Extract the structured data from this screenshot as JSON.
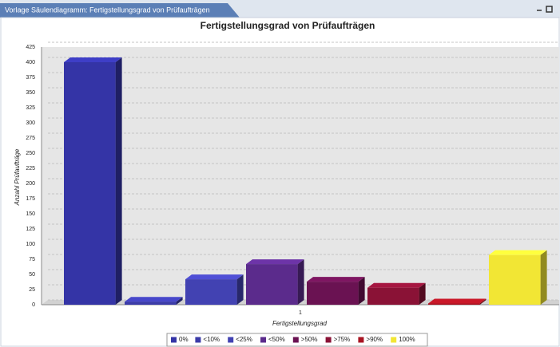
{
  "window": {
    "tab_title": "Vorlage Säulendiagramm: Fertigstellungsgrad von Prüfaufträgen"
  },
  "chart_data": {
    "type": "bar",
    "title": "Fertigstellungsgrad von Prüfaufträgen",
    "x_label": "Fertigstellungsgrad",
    "y_label": "Anzahl Prüfaufträge",
    "categories": [
      "1"
    ],
    "series": [
      {
        "name": "0%",
        "color": "#3434a6",
        "values": [
          400
        ]
      },
      {
        "name": "<10%",
        "color": "#3b3ba8",
        "values": [
          5
        ]
      },
      {
        "name": "<25%",
        "color": "#4242b2",
        "values": [
          42
        ]
      },
      {
        "name": "<50%",
        "color": "#5b2b8c",
        "values": [
          67
        ]
      },
      {
        "name": ">50%",
        "color": "#6a1252",
        "values": [
          38
        ]
      },
      {
        "name": ">75%",
        "color": "#8a1236",
        "values": [
          28
        ]
      },
      {
        "name": ">90%",
        "color": "#a81422",
        "values": [
          2
        ]
      },
      {
        "name": "100%",
        "color": "#f2e634",
        "values": [
          82
        ]
      }
    ],
    "ylim": [
      0,
      425
    ],
    "yticks": [
      0,
      25,
      50,
      75,
      100,
      125,
      150,
      175,
      200,
      225,
      250,
      275,
      300,
      325,
      350,
      375,
      400,
      425
    ],
    "grid": true,
    "legend": "bottom"
  }
}
